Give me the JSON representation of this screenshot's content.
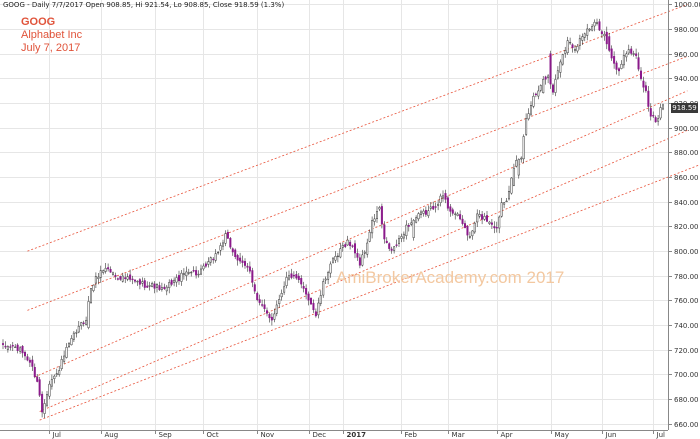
{
  "header": {
    "info_line": "GOOG - Daily 7/7/2017 Open 908.85, Hi 921.54, Lo 908.85, Close 918.59 (1.3%)"
  },
  "symbol": {
    "ticker": "GOOG",
    "name": "Alphabet Inc",
    "date": "July 7, 2017"
  },
  "watermark": "AmiBrokerAcademy.com  2017",
  "last_price_label": "918.59",
  "colors": {
    "background": "#ffffff",
    "grid": "#e6e6e6",
    "up_candle": "#ffffff",
    "down_candle": "#8b1a8b",
    "candle_outline": "#333333",
    "channel_lines": "#e8533a",
    "label_red": "#e0533a",
    "watermark": "#f3c8a0"
  },
  "chart_data": {
    "type": "candlestick",
    "title": "GOOG - Daily 7/7/2017 Open 908.85, Hi 921.54, Lo 908.85, Close 918.59 (1.3%)",
    "ylim": [
      655,
      1002
    ],
    "grid": true,
    "y_ticks": [
      660,
      680,
      700,
      720,
      740,
      760,
      780,
      800,
      820,
      840,
      860,
      880,
      900,
      920,
      940,
      960,
      980,
      1000
    ],
    "x_tick_labels": [
      "Jul",
      "Aug",
      "Sep",
      "Oct",
      "Nov",
      "Dec",
      "2017",
      "Feb",
      "Mar",
      "Apr",
      "May",
      "Jun",
      "Jul"
    ],
    "x_tick_index": [
      19,
      40,
      62,
      82,
      104,
      125,
      139,
      163,
      182,
      202,
      224,
      245,
      266
    ],
    "num_bars": 271,
    "bold_tick_label": "2017",
    "close_anchors": [
      [
        0,
        722
      ],
      [
        4,
        723
      ],
      [
        8,
        718
      ],
      [
        11,
        710
      ],
      [
        14,
        695
      ],
      [
        16,
        670
      ],
      [
        19,
        694
      ],
      [
        22,
        700
      ],
      [
        26,
        720
      ],
      [
        30,
        735
      ],
      [
        34,
        746
      ],
      [
        36,
        770
      ],
      [
        39,
        781
      ],
      [
        42,
        787
      ],
      [
        46,
        780
      ],
      [
        50,
        778
      ],
      [
        54,
        775
      ],
      [
        58,
        773
      ],
      [
        62,
        772
      ],
      [
        66,
        768
      ],
      [
        69,
        775
      ],
      [
        72,
        778
      ],
      [
        76,
        785
      ],
      [
        80,
        781
      ],
      [
        84,
        790
      ],
      [
        88,
        800
      ],
      [
        91,
        812
      ],
      [
        94,
        800
      ],
      [
        97,
        790
      ],
      [
        101,
        785
      ],
      [
        104,
        760
      ],
      [
        107,
        752
      ],
      [
        110,
        745
      ],
      [
        113,
        762
      ],
      [
        116,
        778
      ],
      [
        118,
        780
      ],
      [
        121,
        775
      ],
      [
        124,
        766
      ],
      [
        126,
        758
      ],
      [
        128,
        748
      ],
      [
        131,
        773
      ],
      [
        134,
        790
      ],
      [
        137,
        796
      ],
      [
        139,
        804
      ],
      [
        141,
        808
      ],
      [
        144,
        800
      ],
      [
        146,
        790
      ],
      [
        148,
        800
      ],
      [
        151,
        823
      ],
      [
        154,
        835
      ],
      [
        156,
        808
      ],
      [
        159,
        800
      ],
      [
        162,
        808
      ],
      [
        165,
        820
      ],
      [
        168,
        825
      ],
      [
        171,
        830
      ],
      [
        174,
        832
      ],
      [
        177,
        838
      ],
      [
        180,
        845
      ],
      [
        182,
        836
      ],
      [
        185,
        830
      ],
      [
        188,
        823
      ],
      [
        191,
        810
      ],
      [
        194,
        829
      ],
      [
        197,
        827
      ],
      [
        200,
        823
      ],
      [
        202,
        818
      ],
      [
        204,
        840
      ],
      [
        206,
        843
      ],
      [
        208,
        858
      ],
      [
        210,
        872
      ],
      [
        212,
        876
      ],
      [
        214,
        908
      ],
      [
        217,
        925
      ],
      [
        220,
        936
      ],
      [
        223,
        942
      ],
      [
        225,
        930
      ],
      [
        228,
        955
      ],
      [
        231,
        970
      ],
      [
        234,
        965
      ],
      [
        237,
        975
      ],
      [
        240,
        980
      ],
      [
        243,
        985
      ],
      [
        246,
        975
      ],
      [
        249,
        955
      ],
      [
        252,
        945
      ],
      [
        254,
        960
      ],
      [
        257,
        962
      ],
      [
        259,
        958
      ],
      [
        261,
        940
      ],
      [
        263,
        928
      ],
      [
        265,
        910
      ],
      [
        267,
        905
      ],
      [
        270,
        918.59
      ]
    ],
    "gap_bars": [
      [
        35,
        1
      ],
      [
        168,
        2
      ],
      [
        209,
        1
      ],
      [
        211,
        2
      ],
      [
        221,
        1
      ],
      [
        224,
        3
      ],
      [
        248,
        1
      ]
    ],
    "channel_lines": [
      {
        "x1": 10,
        "y1": 800,
        "x2": 280,
        "y2": 1000
      },
      {
        "x1": 10,
        "y1": 752,
        "x2": 280,
        "y2": 958
      },
      {
        "x1": 13,
        "y1": 698,
        "x2": 280,
        "y2": 930
      },
      {
        "x1": 15,
        "y1": 670,
        "x2": 280,
        "y2": 898
      },
      {
        "x1": 15,
        "y1": 663,
        "x2": 285,
        "y2": 870
      }
    ]
  }
}
